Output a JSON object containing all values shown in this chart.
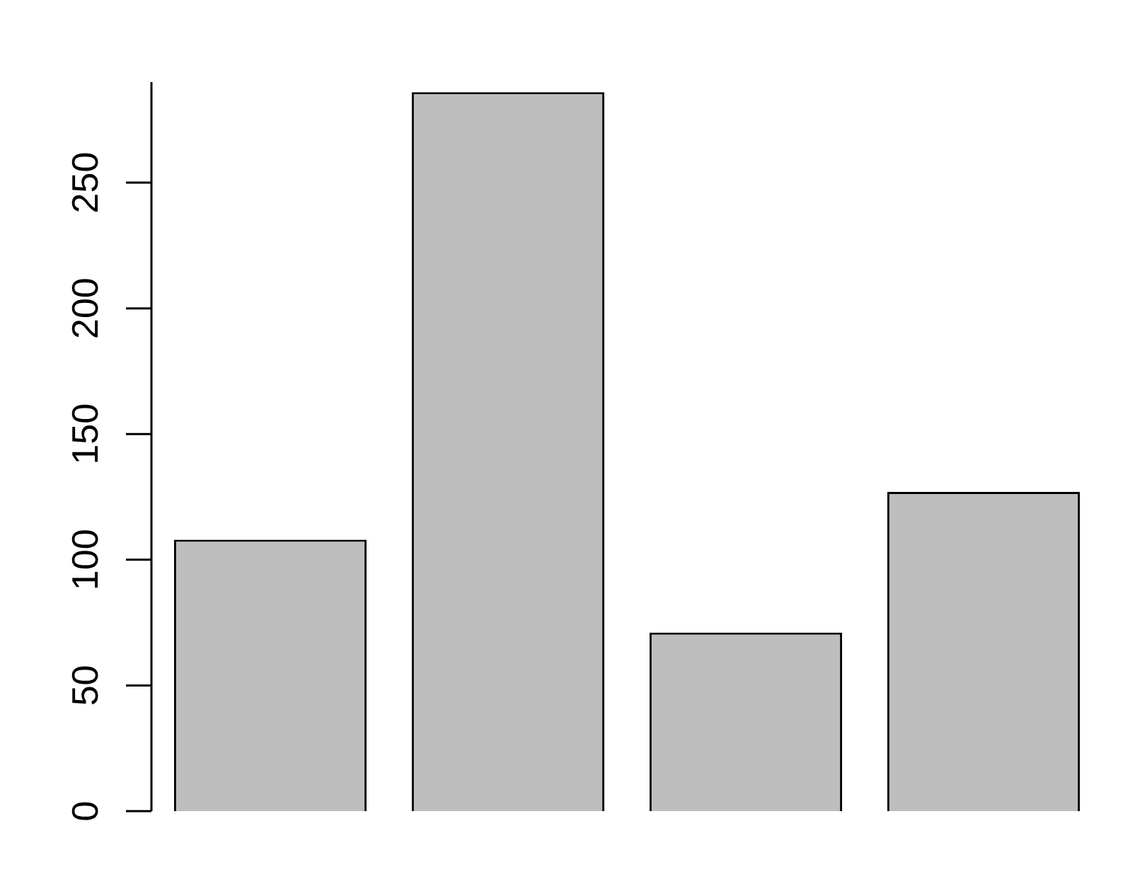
{
  "chart_data": {
    "type": "bar",
    "categories": [
      null,
      null,
      null,
      null
    ],
    "values": [
      108,
      286,
      71,
      127
    ],
    "color": "#bebebe",
    "ylim": [
      0,
      290
    ],
    "yticks": [
      0,
      50,
      100,
      150,
      200,
      250
    ],
    "legend": false
  }
}
